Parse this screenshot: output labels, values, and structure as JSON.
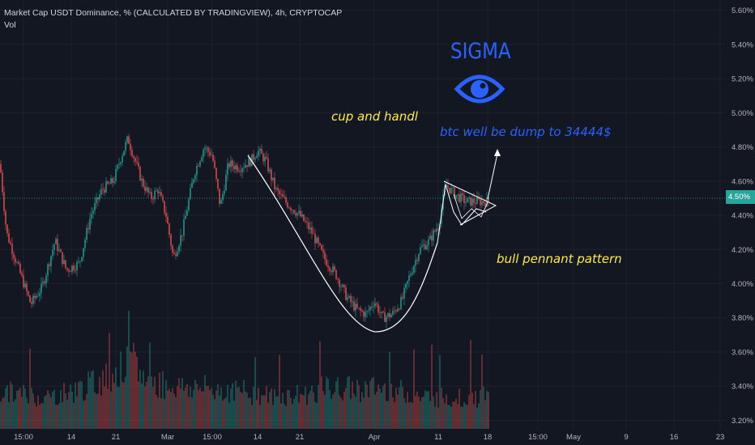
{
  "header": {
    "title": "Market Cap USDT Dominance, % (CALCULATED BY TRADINGVIEW), 4h, CRYPTOCAP",
    "indicator": "Vol"
  },
  "annotations": {
    "sigma": "SIGMA",
    "cup": "cup and handl",
    "btc": "btc well be dump to 34444$",
    "pennant": "bull pennant pattern"
  },
  "colors": {
    "background": "#131722",
    "up": "#26a69a",
    "down": "#ef5350",
    "annotation_yellow": "#ffeb3b",
    "annotation_blue": "#2962ff",
    "drawing": "#ffffff"
  },
  "icons": [
    "eye-icon"
  ],
  "chart_data": {
    "type": "candlestick",
    "interval": "4h",
    "ylim": [
      3.15,
      5.66
    ],
    "y_ticks": [
      "5.60%",
      "5.40%",
      "5.20%",
      "5.00%",
      "4.80%",
      "4.60%",
      "4.40%",
      "4.20%",
      "4.00%",
      "3.80%",
      "3.60%",
      "3.40%",
      "3.20%"
    ],
    "x_ticks": [
      "15:00",
      "14",
      "21",
      "Mar",
      "15:00",
      "14",
      "21",
      "Apr",
      "11",
      "18",
      "15:00",
      "May",
      "9",
      "16",
      "23"
    ],
    "current_price_label": "4.50%",
    "current_price": 4.5,
    "price_path": [
      [
        0,
        4.7
      ],
      [
        8,
        4.3
      ],
      [
        22,
        4.1
      ],
      [
        38,
        3.88
      ],
      [
        52,
        3.98
      ],
      [
        68,
        4.25
      ],
      [
        82,
        4.08
      ],
      [
        98,
        4.12
      ],
      [
        112,
        4.4
      ],
      [
        126,
        4.55
      ],
      [
        140,
        4.6
      ],
      [
        150,
        4.75
      ],
      [
        158,
        4.85
      ],
      [
        168,
        4.7
      ],
      [
        175,
        4.6
      ],
      [
        186,
        4.5
      ],
      [
        195,
        4.55
      ],
      [
        205,
        4.4
      ],
      [
        214,
        4.15
      ],
      [
        225,
        4.3
      ],
      [
        240,
        4.65
      ],
      [
        252,
        4.8
      ],
      [
        262,
        4.75
      ],
      [
        272,
        4.45
      ],
      [
        282,
        4.7
      ],
      [
        296,
        4.68
      ],
      [
        310,
        4.72
      ],
      [
        318,
        4.78
      ],
      [
        328,
        4.72
      ],
      [
        340,
        4.55
      ],
      [
        352,
        4.48
      ],
      [
        370,
        4.4
      ],
      [
        385,
        4.3
      ],
      [
        400,
        4.15
      ],
      [
        415,
        4.05
      ],
      [
        428,
        3.92
      ],
      [
        440,
        3.85
      ],
      [
        452,
        3.82
      ],
      [
        462,
        3.9
      ],
      [
        472,
        3.8
      ],
      [
        484,
        3.82
      ],
      [
        496,
        3.9
      ],
      [
        506,
        4.05
      ],
      [
        518,
        4.2
      ],
      [
        530,
        4.25
      ],
      [
        542,
        4.35
      ],
      [
        550,
        4.58
      ],
      [
        562,
        4.52
      ],
      [
        575,
        4.48
      ],
      [
        590,
        4.48
      ],
      [
        603,
        4.48
      ]
    ],
    "volume_ylim": [
      0,
      100
    ],
    "volume_profile": [
      [
        0,
        35
      ],
      [
        60,
        30
      ],
      [
        100,
        38
      ],
      [
        130,
        48
      ],
      [
        165,
        62
      ],
      [
        180,
        45
      ],
      [
        220,
        40
      ],
      [
        260,
        38
      ],
      [
        300,
        35
      ],
      [
        340,
        30
      ],
      [
        380,
        33
      ],
      [
        400,
        38
      ],
      [
        440,
        38
      ],
      [
        480,
        38
      ],
      [
        520,
        30
      ],
      [
        560,
        30
      ],
      [
        603,
        30
      ]
    ],
    "drawings": [
      "cup-curve",
      "handle-channel",
      "pennant-triangle",
      "target-arrow"
    ]
  }
}
